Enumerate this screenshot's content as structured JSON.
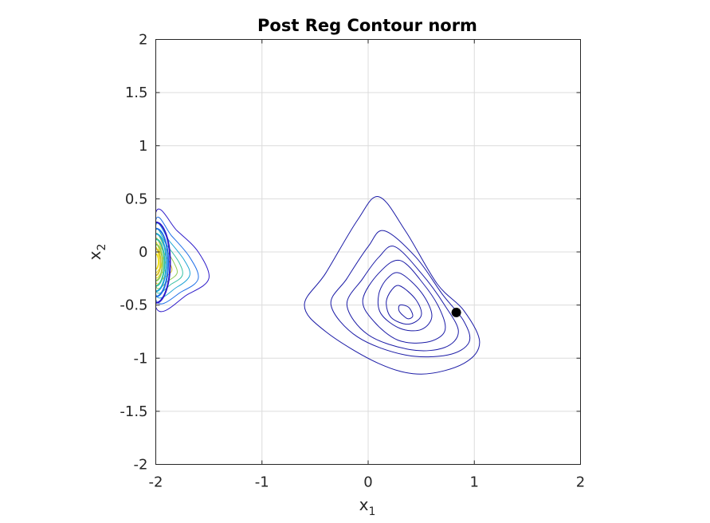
{
  "chart_data": {
    "type": "contour",
    "title": "Post Reg Contour norm",
    "xlabel": {
      "base": "x",
      "sub": "1"
    },
    "ylabel": {
      "base": "x",
      "sub": "2"
    },
    "xlim": [
      -2,
      2
    ],
    "ylim": [
      -2,
      2
    ],
    "grid": true,
    "x_ticks": [
      -2,
      -1,
      0,
      1,
      2
    ],
    "y_ticks": [
      -2,
      -1.5,
      -1,
      -0.5,
      0,
      0.5,
      1,
      1.5,
      2
    ],
    "x_tick_labels": [
      "-2",
      "-1",
      "0",
      "1",
      "2"
    ],
    "y_tick_labels": [
      "-2",
      "-1.5",
      "-1",
      "-0.5",
      "0",
      "0.5",
      "1",
      "1.5",
      "2"
    ],
    "colors": {
      "axis": "#262626",
      "grid": "#dcdcdc",
      "contour_outer": "#1a1aa6",
      "marker": "#000000",
      "left_colormap": [
        "#2d1bc9",
        "#1f6fe8",
        "#20a5d6",
        "#34c0a3",
        "#8fcb56",
        "#d9c02b",
        "#f0e020"
      ]
    },
    "contour_sets": [
      {
        "name": "central",
        "levels": [
          [
            [
              0.1,
              0.52
            ],
            [
              0.35,
              0.2
            ],
            [
              0.65,
              -0.3
            ],
            [
              0.9,
              -0.55
            ],
            [
              1.05,
              -0.85
            ],
            [
              0.9,
              -1.05
            ],
            [
              0.5,
              -1.15
            ],
            [
              0.1,
              -1.05
            ],
            [
              -0.4,
              -0.75
            ],
            [
              -0.6,
              -0.5
            ],
            [
              -0.4,
              -0.2
            ],
            [
              -0.1,
              0.3
            ]
          ],
          [
            [
              0.15,
              0.2
            ],
            [
              0.45,
              -0.05
            ],
            [
              0.7,
              -0.4
            ],
            [
              0.9,
              -0.65
            ],
            [
              0.95,
              -0.85
            ],
            [
              0.75,
              -0.97
            ],
            [
              0.35,
              -0.97
            ],
            [
              -0.1,
              -0.8
            ],
            [
              -0.35,
              -0.5
            ],
            [
              -0.2,
              -0.25
            ],
            [
              0.0,
              0.05
            ]
          ],
          [
            [
              0.25,
              0.05
            ],
            [
              0.5,
              -0.2
            ],
            [
              0.72,
              -0.5
            ],
            [
              0.85,
              -0.75
            ],
            [
              0.72,
              -0.9
            ],
            [
              0.4,
              -0.92
            ],
            [
              0.0,
              -0.78
            ],
            [
              -0.2,
              -0.5
            ],
            [
              -0.05,
              -0.25
            ],
            [
              0.1,
              -0.05
            ]
          ],
          [
            [
              0.3,
              -0.08
            ],
            [
              0.52,
              -0.3
            ],
            [
              0.68,
              -0.55
            ],
            [
              0.72,
              -0.75
            ],
            [
              0.55,
              -0.85
            ],
            [
              0.28,
              -0.83
            ],
            [
              0.05,
              -0.65
            ],
            [
              -0.05,
              -0.45
            ],
            [
              0.1,
              -0.2
            ]
          ],
          [
            [
              0.3,
              -0.2
            ],
            [
              0.5,
              -0.38
            ],
            [
              0.6,
              -0.6
            ],
            [
              0.5,
              -0.73
            ],
            [
              0.3,
              -0.72
            ],
            [
              0.12,
              -0.58
            ],
            [
              0.1,
              -0.4
            ],
            [
              0.18,
              -0.25
            ]
          ],
          [
            [
              0.3,
              -0.32
            ],
            [
              0.45,
              -0.45
            ],
            [
              0.5,
              -0.6
            ],
            [
              0.38,
              -0.68
            ],
            [
              0.22,
              -0.62
            ],
            [
              0.17,
              -0.48
            ],
            [
              0.22,
              -0.36
            ]
          ],
          [
            [
              0.3,
              -0.5
            ],
            [
              0.38,
              -0.52
            ],
            [
              0.42,
              -0.6
            ],
            [
              0.38,
              -0.63
            ],
            [
              0.33,
              -0.6
            ],
            [
              0.29,
              -0.55
            ]
          ]
        ]
      },
      {
        "name": "left-edge",
        "levels": [
          [
            [
              -2.0,
              0.37
            ],
            [
              -1.8,
              0.2
            ],
            [
              -1.6,
              0.0
            ],
            [
              -1.5,
              -0.25
            ],
            [
              -1.7,
              -0.4
            ],
            [
              -2.0,
              -0.52
            ]
          ],
          [
            [
              -2.0,
              0.3
            ],
            [
              -1.85,
              0.15
            ],
            [
              -1.68,
              -0.05
            ],
            [
              -1.6,
              -0.25
            ],
            [
              -1.75,
              -0.37
            ],
            [
              -2.0,
              -0.45
            ]
          ],
          [
            [
              -2.0,
              0.25
            ],
            [
              -1.87,
              0.1
            ],
            [
              -1.73,
              -0.08
            ],
            [
              -1.68,
              -0.22
            ],
            [
              -1.8,
              -0.33
            ],
            [
              -2.0,
              -0.4
            ]
          ],
          [
            [
              -2.0,
              0.2
            ],
            [
              -1.9,
              0.07
            ],
            [
              -1.78,
              -0.1
            ],
            [
              -1.75,
              -0.22
            ],
            [
              -1.85,
              -0.3
            ],
            [
              -2.0,
              -0.36
            ]
          ],
          [
            [
              -2.0,
              0.16
            ],
            [
              -1.92,
              0.05
            ],
            [
              -1.83,
              -0.1
            ],
            [
              -1.8,
              -0.2
            ],
            [
              -1.88,
              -0.27
            ],
            [
              -2.0,
              -0.32
            ]
          ],
          [
            [
              -2.0,
              0.12
            ],
            [
              -1.94,
              0.02
            ],
            [
              -1.87,
              -0.1
            ],
            [
              -1.85,
              -0.18
            ],
            [
              -1.92,
              -0.24
            ],
            [
              -2.0,
              -0.28
            ]
          ],
          [
            [
              -2.0,
              0.08
            ],
            [
              -1.96,
              0.0
            ],
            [
              -1.91,
              -0.1
            ],
            [
              -1.9,
              -0.16
            ],
            [
              -1.95,
              -0.2
            ],
            [
              -2.0,
              -0.23
            ]
          ],
          [
            [
              -2.0,
              0.04
            ],
            [
              -1.975,
              -0.02
            ],
            [
              -1.95,
              -0.1
            ],
            [
              -1.95,
              -0.14
            ],
            [
              -1.975,
              -0.17
            ],
            [
              -2.0,
              -0.18
            ]
          ]
        ]
      }
    ],
    "marker": {
      "label": "",
      "x": 0.83,
      "y": -0.57,
      "symbol": "star"
    }
  }
}
